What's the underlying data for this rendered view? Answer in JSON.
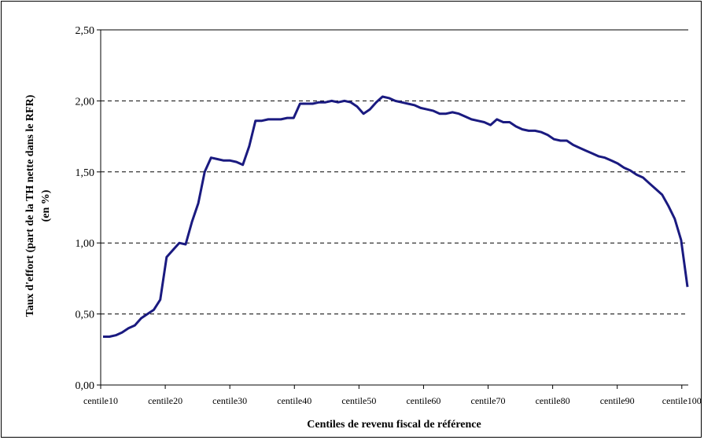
{
  "chart_data": {
    "type": "line",
    "title": "",
    "xlabel": "Centiles de revenu fiscal de référence",
    "ylabel_line1": "Taux d'effort (part de la TH nette dans le RFR)",
    "ylabel_line2": "(en %)",
    "ylim": [
      0,
      2.5
    ],
    "y_ticks": [
      "0,00",
      "0,50",
      "1,00",
      "1,50",
      "2,00",
      "2,50"
    ],
    "x_tick_labels": [
      "centile10",
      "centile20",
      "centile30",
      "centile40",
      "centile50",
      "centile60",
      "centile70",
      "centile80",
      "centile90",
      "centile100"
    ],
    "grid": "horizontal-dashed",
    "legend": "none",
    "line_color": "#1a1a80",
    "series": [
      {
        "values": [
          0.34,
          0.34,
          0.35,
          0.37,
          0.4,
          0.42,
          0.47,
          0.5,
          0.53,
          0.6,
          0.9,
          0.95,
          1.0,
          0.99,
          1.15,
          1.28,
          1.5,
          1.6,
          1.59,
          1.58,
          1.58,
          1.57,
          1.55,
          1.68,
          1.86,
          1.86,
          1.87,
          1.87,
          1.87,
          1.88,
          1.88,
          1.98,
          1.98,
          1.98,
          1.99,
          1.99,
          2.0,
          1.99,
          2.0,
          1.99,
          1.96,
          1.91,
          1.94,
          1.99,
          2.03,
          2.02,
          2.0,
          1.99,
          1.98,
          1.97,
          1.95,
          1.94,
          1.93,
          1.91,
          1.91,
          1.92,
          1.91,
          1.89,
          1.87,
          1.86,
          1.85,
          1.83,
          1.87,
          1.85,
          1.85,
          1.82,
          1.8,
          1.79,
          1.79,
          1.78,
          1.76,
          1.73,
          1.72,
          1.72,
          1.69,
          1.67,
          1.65,
          1.63,
          1.61,
          1.6,
          1.58,
          1.56,
          1.53,
          1.51,
          1.48,
          1.46,
          1.42,
          1.38,
          1.34,
          1.26,
          1.17,
          1.02,
          0.69
        ]
      }
    ]
  }
}
